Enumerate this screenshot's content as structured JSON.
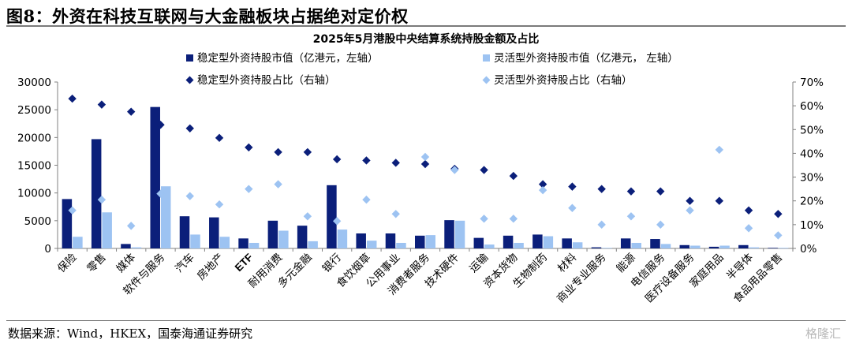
{
  "figure": {
    "title": "图8：外资在科技互联网与大金融板块占据绝对定价权",
    "source": "数据来源：Wind，HKEX，国泰海通证券研究",
    "watermark": "格隆汇"
  },
  "chart_data": {
    "type": "bar",
    "title": "2025年5月港股中央结算系统持股金额及占比",
    "categories": [
      "保险",
      "零售",
      "媒体",
      "软件与服务",
      "汽车",
      "房地产",
      "ETF",
      "耐用消费",
      "多元金融",
      "银行",
      "食饮烟草",
      "公用事业",
      "消费者服务",
      "技术硬件",
      "运输",
      "资本货物",
      "生物制药",
      "材料",
      "商业专业服务",
      "能源",
      "电信服务",
      "医疗设备服务",
      "家庭用品",
      "半导体",
      "食品用品零售"
    ],
    "series": [
      {
        "name": "稳定型外资持股市值（亿港元，左轴）",
        "kind": "bar",
        "axis": "left",
        "color": "#0b1f7a",
        "values": [
          8900,
          19700,
          800,
          25500,
          5800,
          5600,
          1800,
          5000,
          4100,
          11400,
          2700,
          2700,
          2300,
          5100,
          1900,
          2300,
          2500,
          1800,
          200,
          1800,
          1700,
          600,
          300,
          600,
          100
        ]
      },
      {
        "name": "灵活型外资持股市值（亿港元， 左轴）",
        "kind": "bar",
        "axis": "left",
        "color": "#9dc3f2",
        "values": [
          2100,
          6500,
          200,
          11200,
          2500,
          2100,
          1000,
          3200,
          1300,
          3400,
          1400,
          1000,
          2400,
          5000,
          700,
          1000,
          2200,
          1100,
          100,
          1000,
          800,
          500,
          500,
          200,
          100
        ]
      },
      {
        "name": "稳定型外资持股占比（右轴）",
        "kind": "scatter",
        "axis": "right",
        "color": "#0b1f7a",
        "values": [
          63,
          60.5,
          57.5,
          52,
          50.5,
          46.5,
          42.5,
          40.5,
          40.5,
          37.5,
          37,
          36,
          35.5,
          33.5,
          33,
          30.5,
          27,
          26,
          25,
          24,
          24,
          20,
          20,
          16,
          14.5
        ]
      },
      {
        "name": "灵活型外资持股占比（右轴）",
        "kind": "scatter",
        "axis": "right",
        "color": "#9dc3f2",
        "values": [
          16,
          20.5,
          9.5,
          23,
          22,
          18.5,
          25,
          27,
          13.5,
          11.5,
          20.5,
          14.5,
          38.5,
          33,
          12.5,
          12.5,
          24.5,
          17,
          10,
          13.5,
          10,
          16,
          41.5,
          8.5,
          5.5
        ]
      }
    ],
    "y_left": {
      "min": 0,
      "max": 30000,
      "ticks": [
        "0",
        "5000",
        "10000",
        "15000",
        "20000",
        "25000",
        "30000"
      ]
    },
    "y_right": {
      "min": 0,
      "max": 70,
      "ticks": [
        "0%",
        "10%",
        "20%",
        "30%",
        "40%",
        "50%",
        "60%",
        "70%"
      ]
    },
    "legend_position": "top",
    "grid": false
  }
}
